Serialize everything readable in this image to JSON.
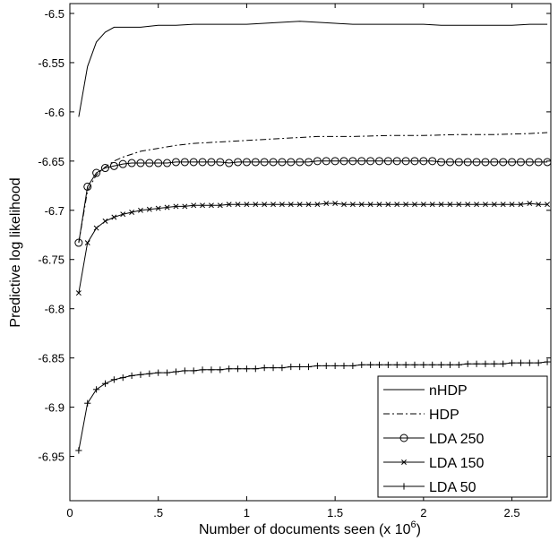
{
  "chart_data": {
    "type": "line",
    "xlabel": "Number of documents seen (x 10^6)",
    "xlabel_parts": {
      "main": "Number of documents seen (x 10",
      "superscript": "6",
      "close": ")"
    },
    "ylabel": "Predictive log likelihood",
    "xlim": [
      0,
      2.72
    ],
    "ylim": [
      -6.995,
      -6.49
    ],
    "x_ticks": [
      {
        "value": 0,
        "label": "0"
      },
      {
        "value": 0.5,
        "label": ".5"
      },
      {
        "value": 1,
        "label": "1"
      },
      {
        "value": 1.5,
        "label": "1.5"
      },
      {
        "value": 2,
        "label": "2"
      },
      {
        "value": 2.5,
        "label": "2.5"
      }
    ],
    "y_ticks": [
      {
        "value": -6.5,
        "label": "-6.5"
      },
      {
        "value": -6.55,
        "label": "-6.55"
      },
      {
        "value": -6.6,
        "label": "-6.6"
      },
      {
        "value": -6.65,
        "label": "-6.65"
      },
      {
        "value": -6.7,
        "label": "-6.7"
      },
      {
        "value": -6.75,
        "label": "-6.75"
      },
      {
        "value": -6.8,
        "label": "-6.8"
      },
      {
        "value": -6.85,
        "label": "-6.85"
      },
      {
        "value": -6.9,
        "label": "-6.9"
      },
      {
        "value": -6.95,
        "label": "-6.95"
      }
    ],
    "grid": false,
    "legend_position": "bottom-right",
    "series": [
      {
        "name": "nHDP",
        "line": "solid",
        "marker": "none",
        "color": "#000000",
        "x": [
          0.05,
          0.1,
          0.15,
          0.2,
          0.25,
          0.3,
          0.4,
          0.5,
          0.6,
          0.7,
          0.8,
          0.9,
          1.0,
          1.1,
          1.2,
          1.3,
          1.4,
          1.5,
          1.6,
          1.7,
          1.8,
          1.9,
          2.0,
          2.1,
          2.2,
          2.3,
          2.4,
          2.5,
          2.6,
          2.7
        ],
        "y": [
          -6.605,
          -6.554,
          -6.529,
          -6.519,
          -6.514,
          -6.514,
          -6.514,
          -6.512,
          -6.512,
          -6.511,
          -6.511,
          -6.511,
          -6.511,
          -6.51,
          -6.509,
          -6.508,
          -6.509,
          -6.51,
          -6.511,
          -6.511,
          -6.511,
          -6.511,
          -6.511,
          -6.512,
          -6.512,
          -6.512,
          -6.512,
          -6.512,
          -6.511,
          -6.511
        ]
      },
      {
        "name": "HDP",
        "line": "dashdot",
        "marker": "none",
        "color": "#000000",
        "x": [
          0.05,
          0.1,
          0.15,
          0.2,
          0.25,
          0.3,
          0.4,
          0.5,
          0.6,
          0.7,
          0.8,
          0.9,
          1.0,
          1.2,
          1.4,
          1.6,
          1.8,
          2.0,
          2.2,
          2.4,
          2.6,
          2.7
        ],
        "y": [
          -6.733,
          -6.68,
          -6.664,
          -6.656,
          -6.65,
          -6.646,
          -6.64,
          -6.637,
          -6.634,
          -6.632,
          -6.631,
          -6.63,
          -6.629,
          -6.627,
          -6.625,
          -6.625,
          -6.624,
          -6.624,
          -6.623,
          -6.623,
          -6.622,
          -6.621
        ]
      },
      {
        "name": "LDA 250",
        "line": "solid",
        "marker": "circle",
        "color": "#000000",
        "x": [
          0.05,
          0.1,
          0.15,
          0.2,
          0.25,
          0.3,
          0.35,
          0.4,
          0.45,
          0.5,
          0.55,
          0.6,
          0.65,
          0.7,
          0.75,
          0.8,
          0.85,
          0.9,
          0.95,
          1.0,
          1.05,
          1.1,
          1.15,
          1.2,
          1.25,
          1.3,
          1.35,
          1.4,
          1.45,
          1.5,
          1.55,
          1.6,
          1.65,
          1.7,
          1.75,
          1.8,
          1.85,
          1.9,
          1.95,
          2.0,
          2.05,
          2.1,
          2.15,
          2.2,
          2.25,
          2.3,
          2.35,
          2.4,
          2.45,
          2.5,
          2.55,
          2.6,
          2.65,
          2.7
        ],
        "y": [
          -6.733,
          -6.676,
          -6.662,
          -6.657,
          -6.655,
          -6.653,
          -6.652,
          -6.652,
          -6.652,
          -6.652,
          -6.652,
          -6.651,
          -6.651,
          -6.651,
          -6.651,
          -6.651,
          -6.651,
          -6.652,
          -6.651,
          -6.651,
          -6.651,
          -6.651,
          -6.651,
          -6.651,
          -6.651,
          -6.651,
          -6.651,
          -6.65,
          -6.65,
          -6.65,
          -6.65,
          -6.65,
          -6.65,
          -6.65,
          -6.65,
          -6.65,
          -6.65,
          -6.65,
          -6.65,
          -6.65,
          -6.65,
          -6.651,
          -6.651,
          -6.651,
          -6.651,
          -6.651,
          -6.651,
          -6.651,
          -6.651,
          -6.651,
          -6.651,
          -6.651,
          -6.651,
          -6.651
        ]
      },
      {
        "name": "LDA 150",
        "line": "solid",
        "marker": "x",
        "color": "#000000",
        "x": [
          0.05,
          0.1,
          0.15,
          0.2,
          0.25,
          0.3,
          0.35,
          0.4,
          0.45,
          0.5,
          0.55,
          0.6,
          0.65,
          0.7,
          0.75,
          0.8,
          0.85,
          0.9,
          0.95,
          1.0,
          1.05,
          1.1,
          1.15,
          1.2,
          1.25,
          1.3,
          1.35,
          1.4,
          1.45,
          1.5,
          1.55,
          1.6,
          1.65,
          1.7,
          1.75,
          1.8,
          1.85,
          1.9,
          1.95,
          2.0,
          2.05,
          2.1,
          2.15,
          2.2,
          2.25,
          2.3,
          2.35,
          2.4,
          2.45,
          2.5,
          2.55,
          2.6,
          2.65,
          2.7
        ],
        "y": [
          -6.784,
          -6.733,
          -6.718,
          -6.711,
          -6.707,
          -6.704,
          -6.702,
          -6.7,
          -6.699,
          -6.698,
          -6.697,
          -6.696,
          -6.696,
          -6.695,
          -6.695,
          -6.695,
          -6.695,
          -6.694,
          -6.694,
          -6.694,
          -6.694,
          -6.694,
          -6.694,
          -6.694,
          -6.694,
          -6.694,
          -6.694,
          -6.694,
          -6.693,
          -6.693,
          -6.694,
          -6.694,
          -6.694,
          -6.694,
          -6.694,
          -6.694,
          -6.694,
          -6.694,
          -6.694,
          -6.694,
          -6.694,
          -6.694,
          -6.694,
          -6.694,
          -6.694,
          -6.694,
          -6.694,
          -6.694,
          -6.694,
          -6.694,
          -6.694,
          -6.693,
          -6.694,
          -6.694
        ]
      },
      {
        "name": "LDA 50",
        "line": "solid",
        "marker": "plus",
        "color": "#000000",
        "x": [
          0.05,
          0.1,
          0.15,
          0.2,
          0.25,
          0.3,
          0.35,
          0.4,
          0.45,
          0.5,
          0.55,
          0.6,
          0.65,
          0.7,
          0.75,
          0.8,
          0.85,
          0.9,
          0.95,
          1.0,
          1.05,
          1.1,
          1.15,
          1.2,
          1.25,
          1.3,
          1.35,
          1.4,
          1.45,
          1.5,
          1.55,
          1.6,
          1.65,
          1.7,
          1.75,
          1.8,
          1.85,
          1.9,
          1.95,
          2.0,
          2.05,
          2.1,
          2.15,
          2.2,
          2.25,
          2.3,
          2.35,
          2.4,
          2.45,
          2.5,
          2.55,
          2.6,
          2.65,
          2.7
        ],
        "y": [
          -6.944,
          -6.896,
          -6.882,
          -6.876,
          -6.872,
          -6.87,
          -6.868,
          -6.867,
          -6.866,
          -6.865,
          -6.865,
          -6.864,
          -6.863,
          -6.863,
          -6.862,
          -6.862,
          -6.862,
          -6.861,
          -6.861,
          -6.861,
          -6.861,
          -6.86,
          -6.86,
          -6.86,
          -6.859,
          -6.859,
          -6.859,
          -6.858,
          -6.858,
          -6.858,
          -6.858,
          -6.858,
          -6.857,
          -6.857,
          -6.857,
          -6.857,
          -6.857,
          -6.857,
          -6.857,
          -6.857,
          -6.857,
          -6.857,
          -6.857,
          -6.857,
          -6.856,
          -6.856,
          -6.856,
          -6.856,
          -6.856,
          -6.855,
          -6.855,
          -6.855,
          -6.855,
          -6.854
        ]
      }
    ]
  }
}
